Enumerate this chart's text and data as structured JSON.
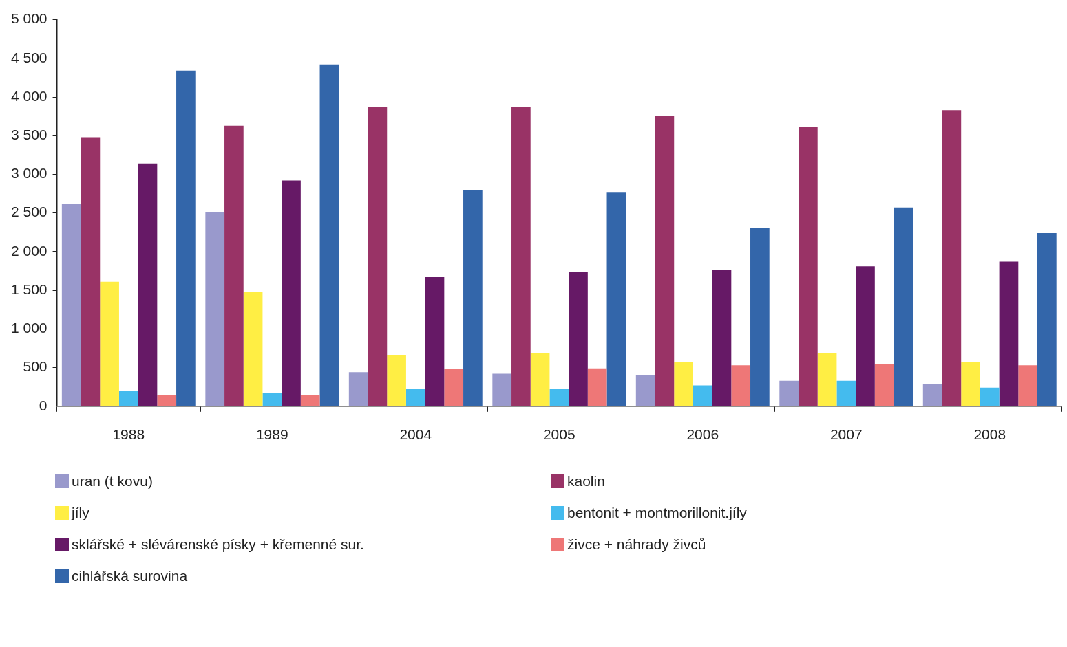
{
  "chart_data": {
    "type": "bar",
    "categories": [
      "1988",
      "1989",
      "2004",
      "2005",
      "2006",
      "2007",
      "2008"
    ],
    "series": [
      {
        "name": "uran (t kovu)",
        "color": "#9999cc",
        "values": [
          2620,
          2510,
          440,
          420,
          400,
          330,
          290
        ]
      },
      {
        "name": "kaolin",
        "color": "#993366",
        "values": [
          3480,
          3630,
          3870,
          3870,
          3760,
          3610,
          3830
        ]
      },
      {
        "name": "jíly",
        "color": "#ffee44",
        "values": [
          1610,
          1480,
          660,
          690,
          570,
          690,
          570
        ]
      },
      {
        "name": "bentonit + montmorillonit.jíly",
        "color": "#44bbee",
        "values": [
          200,
          170,
          220,
          220,
          270,
          330,
          240
        ]
      },
      {
        "name": "sklářské + slévárenské písky + křemenné sur.",
        "color": "#661966",
        "values": [
          3140,
          2920,
          1670,
          1740,
          1760,
          1810,
          1870
        ]
      },
      {
        "name": "živce + náhrady živců",
        "color": "#ee7777",
        "values": [
          150,
          150,
          480,
          490,
          530,
          550,
          530
        ]
      },
      {
        "name": "cihlářská surovina",
        "color": "#3366aa",
        "values": [
          4340,
          4420,
          2800,
          2770,
          2310,
          2570,
          2240
        ]
      }
    ],
    "ylim": [
      0,
      5000
    ],
    "yticks": [
      0,
      500,
      {
        "value": 1000,
        "label": "1 000"
      },
      {
        "value": 1500,
        "label": "1 500"
      },
      {
        "value": 2000,
        "label": "2 000"
      },
      {
        "value": 2500,
        "label": "2 500"
      },
      {
        "value": 3000,
        "label": "3 000"
      },
      {
        "value": 3500,
        "label": "3 500"
      },
      {
        "value": 4000,
        "label": "4 000"
      },
      {
        "value": 4500,
        "label": "4 500"
      },
      {
        "value": 5000,
        "label": "5 000"
      }
    ],
    "grid": false,
    "legend": "bottom"
  }
}
